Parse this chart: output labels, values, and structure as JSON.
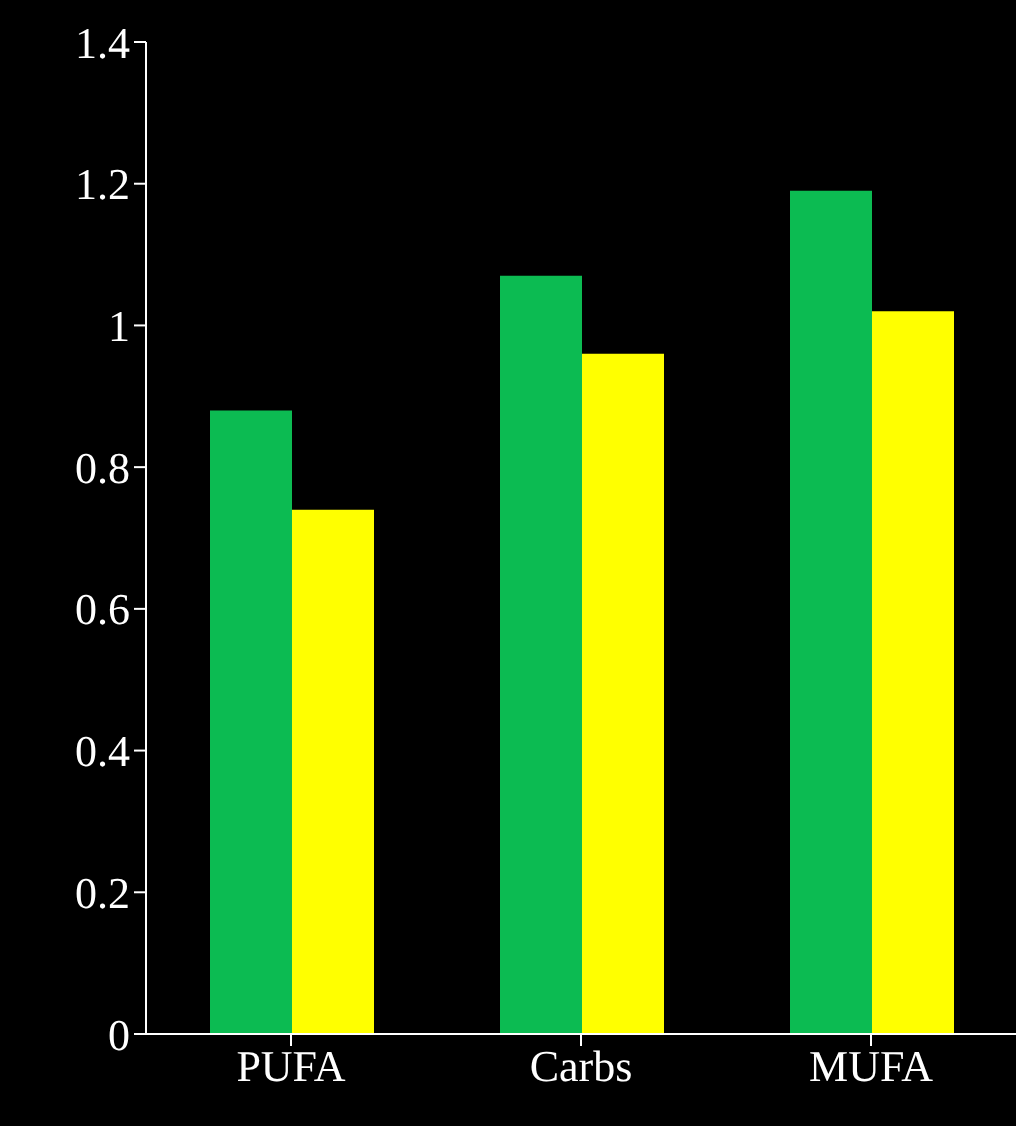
{
  "chart_data": {
    "type": "bar",
    "categories": [
      "PUFA",
      "Carbs",
      "MUFA"
    ],
    "series": [
      {
        "color": "#0cbb52",
        "values": [
          0.88,
          1.07,
          1.19
        ]
      },
      {
        "color": "#ffff00",
        "values": [
          0.74,
          0.96,
          1.02
        ]
      }
    ],
    "ylim": [
      0,
      1.4
    ],
    "yticks": [
      0,
      0.2,
      0.4,
      0.6,
      0.8,
      1,
      1.2,
      1.4
    ],
    "grid": false,
    "legend": false
  }
}
